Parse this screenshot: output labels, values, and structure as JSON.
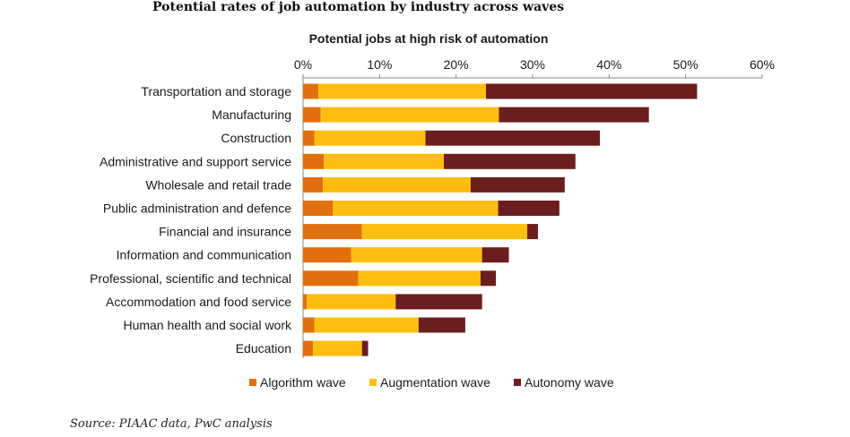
{
  "figure_title": "Potential rates of job automation by industry across waves",
  "source": "Source: PIAAC data, PwC analysis",
  "colors": {
    "algorithm": "#E26F0E",
    "augmentation": "#FFBE0F",
    "autonomy": "#6B1E1E",
    "axis": "#888888",
    "text": "#1a1a1a"
  },
  "chart_data": {
    "type": "bar",
    "orientation": "horizontal",
    "stacked": true,
    "title": "Potential jobs at high risk of automation",
    "xlim": [
      0,
      60
    ],
    "x_ticks": [
      "0%",
      "10%",
      "20%",
      "30%",
      "40%",
      "50%",
      "60%"
    ],
    "x_axis_position": "top",
    "grid": false,
    "legend_position": "bottom",
    "categories": [
      "Transportation and storage",
      "Manufacturing",
      "Construction",
      "Administrative and support service",
      "Wholesale and retail trade",
      "Public administration and defence",
      "Financial and insurance",
      "Information and communication",
      "Professional, scientific and technical",
      "Accommodation and food service",
      "Human health and social work",
      "Education"
    ],
    "series": [
      {
        "name": "Algorithm wave",
        "color_key": "algorithm",
        "values": [
          2.0,
          2.3,
          1.5,
          2.7,
          2.6,
          3.9,
          7.7,
          6.3,
          7.2,
          0.5,
          1.5,
          1.3
        ]
      },
      {
        "name": "Augmentation wave",
        "color_key": "augmentation",
        "values": [
          21.9,
          23.3,
          14.5,
          15.7,
          19.3,
          21.6,
          21.6,
          17.1,
          16.0,
          11.6,
          13.6,
          6.4
        ]
      },
      {
        "name": "Autonomy wave",
        "color_key": "autonomy",
        "values": [
          27.6,
          19.6,
          22.8,
          17.2,
          12.3,
          8.0,
          1.4,
          3.5,
          2.0,
          11.3,
          6.1,
          0.8
        ]
      }
    ]
  }
}
